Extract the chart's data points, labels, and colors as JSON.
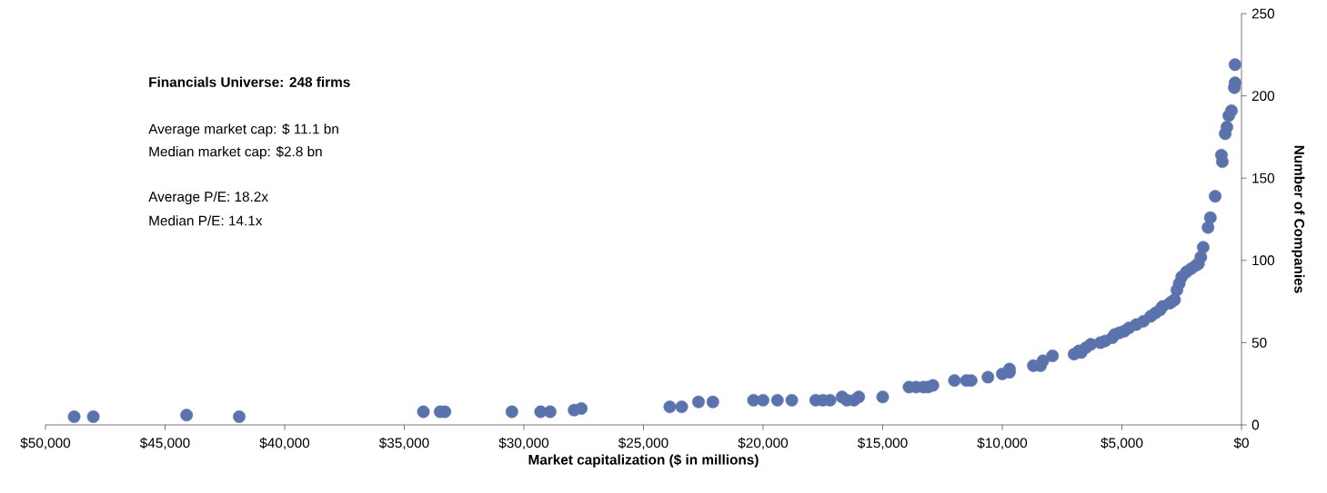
{
  "chart_data": {
    "type": "scatter",
    "title": "Financials Universe: 248 firms",
    "xlabel": "Market capitalization ($ in millions)",
    "ylabel": "Number of Companies",
    "annotations": [
      "Average market cap: $ 11.1 bn",
      "Median market cap: $2.8 bn",
      "Average P/E: 18.2x",
      "Median P/E: 14.1x"
    ],
    "xlim": [
      50000,
      0
    ],
    "ylim": [
      0,
      250
    ],
    "xticks": [
      {
        "value": 50000,
        "label": "$50,000"
      },
      {
        "value": 45000,
        "label": "$45,000"
      },
      {
        "value": 40000,
        "label": "$40,000"
      },
      {
        "value": 35000,
        "label": "$35,000"
      },
      {
        "value": 30000,
        "label": "$30,000"
      },
      {
        "value": 25000,
        "label": "$25,000"
      },
      {
        "value": 20000,
        "label": "$20,000"
      },
      {
        "value": 15000,
        "label": "$15,000"
      },
      {
        "value": 10000,
        "label": "$10,000"
      },
      {
        "value": 5000,
        "label": "$5,000"
      },
      {
        "value": 0,
        "label": "$0"
      }
    ],
    "yticks": [
      0,
      50,
      100,
      150,
      200,
      250
    ],
    "marker": "circle",
    "grid": false,
    "series": [
      {
        "color": "#5b73ad",
        "x": [
          48800,
          48000,
          44100,
          41900,
          34200,
          33500,
          33300,
          30500,
          29300,
          28900,
          27900,
          27600,
          23900,
          23400,
          22700,
          22100,
          20400,
          20000,
          19400,
          18800,
          17800,
          17500,
          17200,
          16700,
          16500,
          16200,
          16000,
          15000,
          13900,
          13600,
          13300,
          13100,
          12900,
          12000,
          11500,
          11300,
          10600,
          10000,
          9700,
          9700,
          8700,
          8400,
          8300,
          7900,
          7000,
          6800,
          6700,
          6500,
          6300,
          5900,
          5700,
          5400,
          5300,
          5100,
          4900,
          4700,
          4400,
          4100,
          3800,
          3600,
          3400,
          3300,
          3000,
          2900,
          2800,
          2700,
          2600,
          2500,
          2300,
          2100,
          1900,
          1800,
          1700,
          1600,
          1400,
          1300,
          1100,
          840,
          800,
          680,
          610,
          530,
          420,
          300,
          270,
          270
        ],
        "values": [
          5,
          5,
          6,
          5,
          8,
          8,
          8,
          8,
          8,
          8,
          9,
          10,
          11,
          11,
          14,
          14,
          15,
          15,
          15,
          15,
          15,
          15,
          15,
          17,
          15,
          15,
          17,
          17,
          23,
          23,
          23,
          23,
          24,
          27,
          27,
          27,
          29,
          31,
          34,
          32,
          36,
          36,
          39,
          42,
          43,
          45,
          44,
          47,
          49,
          50,
          51,
          53,
          55,
          56,
          57,
          59,
          61,
          63,
          66,
          68,
          70,
          72,
          74,
          75,
          76,
          82,
          86,
          90,
          93,
          95,
          97,
          98,
          102,
          108,
          120,
          126,
          139,
          164,
          160,
          177,
          181,
          188,
          191,
          205,
          208,
          219
        ]
      }
    ]
  }
}
